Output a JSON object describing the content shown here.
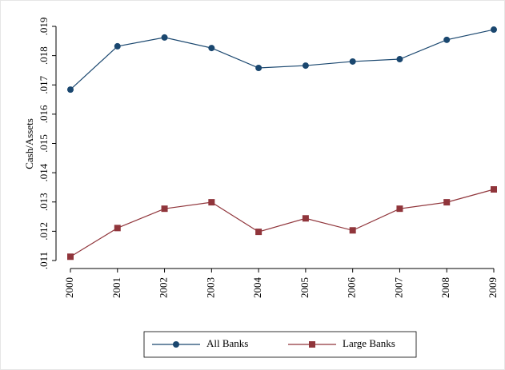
{
  "chart_data": {
    "type": "line",
    "ylabel": "Cash/Assets",
    "x": [
      2000,
      2001,
      2002,
      2003,
      2004,
      2005,
      2006,
      2007,
      2008,
      2009
    ],
    "xlim": [
      2000,
      2009
    ],
    "xticks": [
      2000,
      2001,
      2002,
      2003,
      2004,
      2005,
      2006,
      2007,
      2008,
      2009
    ],
    "ylim": [
      0.011,
      0.019
    ],
    "yticks": [
      {
        "value": 0.011,
        "label": ".011"
      },
      {
        "value": 0.012,
        "label": ".012"
      },
      {
        "value": 0.013,
        "label": ".013"
      },
      {
        "value": 0.014,
        "label": ".014"
      },
      {
        "value": 0.015,
        "label": ".015"
      },
      {
        "value": 0.016,
        "label": ".016"
      },
      {
        "value": 0.017,
        "label": ".017"
      },
      {
        "value": 0.018,
        "label": ".018"
      },
      {
        "value": 0.019,
        "label": ".019"
      }
    ],
    "legend": "bottom",
    "series": [
      {
        "name": "All Banks",
        "color": "#1a476f",
        "marker": "circle",
        "values": [
          0.01684,
          0.01832,
          0.01862,
          0.01826,
          0.01758,
          0.01766,
          0.0178,
          0.01788,
          0.01854,
          0.01889
        ]
      },
      {
        "name": "Large Banks",
        "color": "#90353b",
        "marker": "square",
        "values": [
          0.01113,
          0.01211,
          0.01277,
          0.01299,
          0.01198,
          0.01244,
          0.01203,
          0.01277,
          0.01299,
          0.01343
        ]
      }
    ]
  }
}
